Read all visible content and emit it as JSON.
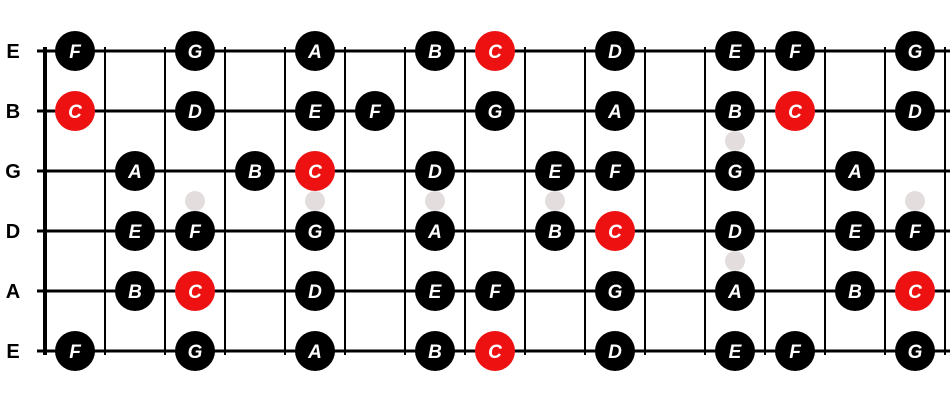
{
  "colors": {
    "natural": "#000000",
    "root": "#ee1111",
    "inlay": "#e3dddd",
    "text": "#ffffff"
  },
  "strings": [
    "E",
    "B",
    "G",
    "D",
    "A",
    "E"
  ],
  "root_note": "C",
  "fret_count": 15,
  "inlay_frets": [
    {
      "fret": 3,
      "strings": [
        2.5
      ]
    },
    {
      "fret": 5,
      "strings": [
        2.5
      ]
    },
    {
      "fret": 7,
      "strings": [
        2.5
      ]
    },
    {
      "fret": 9,
      "strings": [
        2.5
      ]
    },
    {
      "fret": 12,
      "strings": [
        1.5,
        3.5
      ]
    },
    {
      "fret": 15,
      "strings": [
        2.5
      ]
    }
  ],
  "notes": [
    {
      "string": 0,
      "fret": 1,
      "label": "F"
    },
    {
      "string": 0,
      "fret": 3,
      "label": "G"
    },
    {
      "string": 0,
      "fret": 5,
      "label": "A"
    },
    {
      "string": 0,
      "fret": 7,
      "label": "B"
    },
    {
      "string": 0,
      "fret": 8,
      "label": "C"
    },
    {
      "string": 0,
      "fret": 10,
      "label": "D"
    },
    {
      "string": 0,
      "fret": 12,
      "label": "E"
    },
    {
      "string": 0,
      "fret": 13,
      "label": "F"
    },
    {
      "string": 0,
      "fret": 15,
      "label": "G"
    },
    {
      "string": 1,
      "fret": 1,
      "label": "C"
    },
    {
      "string": 1,
      "fret": 3,
      "label": "D"
    },
    {
      "string": 1,
      "fret": 5,
      "label": "E"
    },
    {
      "string": 1,
      "fret": 6,
      "label": "F"
    },
    {
      "string": 1,
      "fret": 8,
      "label": "G"
    },
    {
      "string": 1,
      "fret": 10,
      "label": "A"
    },
    {
      "string": 1,
      "fret": 12,
      "label": "B"
    },
    {
      "string": 1,
      "fret": 13,
      "label": "C"
    },
    {
      "string": 1,
      "fret": 15,
      "label": "D"
    },
    {
      "string": 2,
      "fret": 2,
      "label": "A"
    },
    {
      "string": 2,
      "fret": 4,
      "label": "B"
    },
    {
      "string": 2,
      "fret": 5,
      "label": "C"
    },
    {
      "string": 2,
      "fret": 7,
      "label": "D"
    },
    {
      "string": 2,
      "fret": 9,
      "label": "E"
    },
    {
      "string": 2,
      "fret": 10,
      "label": "F"
    },
    {
      "string": 2,
      "fret": 12,
      "label": "G"
    },
    {
      "string": 2,
      "fret": 14,
      "label": "A"
    },
    {
      "string": 3,
      "fret": 2,
      "label": "E"
    },
    {
      "string": 3,
      "fret": 3,
      "label": "F"
    },
    {
      "string": 3,
      "fret": 5,
      "label": "G"
    },
    {
      "string": 3,
      "fret": 7,
      "label": "A"
    },
    {
      "string": 3,
      "fret": 9,
      "label": "B"
    },
    {
      "string": 3,
      "fret": 10,
      "label": "C"
    },
    {
      "string": 3,
      "fret": 12,
      "label": "D"
    },
    {
      "string": 3,
      "fret": 14,
      "label": "E"
    },
    {
      "string": 3,
      "fret": 15,
      "label": "F"
    },
    {
      "string": 4,
      "fret": 2,
      "label": "B"
    },
    {
      "string": 4,
      "fret": 3,
      "label": "C"
    },
    {
      "string": 4,
      "fret": 5,
      "label": "D"
    },
    {
      "string": 4,
      "fret": 7,
      "label": "E"
    },
    {
      "string": 4,
      "fret": 8,
      "label": "F"
    },
    {
      "string": 4,
      "fret": 10,
      "label": "G"
    },
    {
      "string": 4,
      "fret": 12,
      "label": "A"
    },
    {
      "string": 4,
      "fret": 14,
      "label": "B"
    },
    {
      "string": 4,
      "fret": 15,
      "label": "C"
    },
    {
      "string": 5,
      "fret": 1,
      "label": "F"
    },
    {
      "string": 5,
      "fret": 3,
      "label": "G"
    },
    {
      "string": 5,
      "fret": 5,
      "label": "A"
    },
    {
      "string": 5,
      "fret": 7,
      "label": "B"
    },
    {
      "string": 5,
      "fret": 8,
      "label": "C"
    },
    {
      "string": 5,
      "fret": 10,
      "label": "D"
    },
    {
      "string": 5,
      "fret": 12,
      "label": "E"
    },
    {
      "string": 5,
      "fret": 13,
      "label": "F"
    },
    {
      "string": 5,
      "fret": 15,
      "label": "G"
    }
  ]
}
